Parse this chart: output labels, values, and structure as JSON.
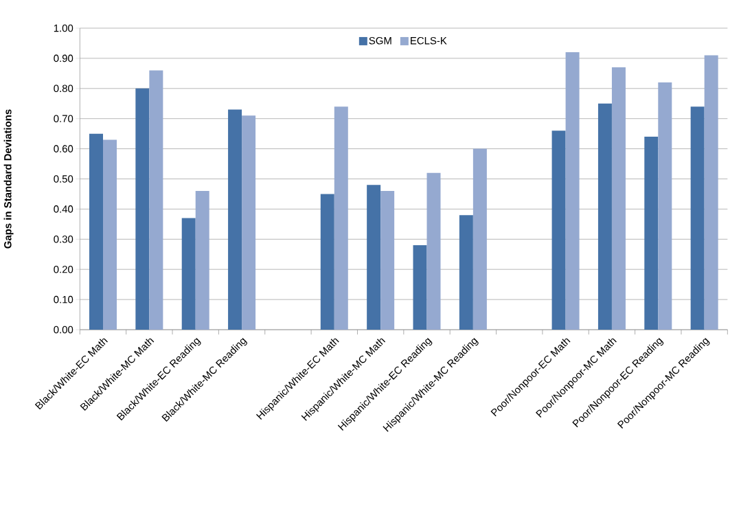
{
  "chart_data": {
    "type": "bar",
    "ylabel": "Gaps in Standard Deviations",
    "categories": [
      "Black/White-EC Math",
      "Black/White-MC Math",
      "Black/White-EC Reading",
      "Black/White-MC Reading",
      null,
      "Hispanic/White-EC Math",
      "Hispanic/White-MC Math",
      "Hispanic/White-EC Reading",
      "Hispanic/White-MC Reading",
      null,
      "Poor/Nonpoor-EC Math",
      "Poor/Nonpoor-MC Math",
      "Poor/Nonpoor-EC Reading",
      "Poor/Nonpoor-MC Reading"
    ],
    "series": [
      {
        "name": "SGM",
        "color": "#4572a7",
        "values": [
          0.65,
          0.8,
          0.37,
          0.73,
          null,
          0.45,
          0.48,
          0.28,
          0.38,
          null,
          0.66,
          0.75,
          0.64,
          0.74
        ]
      },
      {
        "name": "ECLS-K",
        "color": "#95a9d0",
        "values": [
          0.63,
          0.86,
          0.46,
          0.71,
          null,
          0.74,
          0.46,
          0.52,
          0.6,
          null,
          0.92,
          0.87,
          0.82,
          0.91
        ]
      }
    ],
    "ylim": [
      0,
      1
    ],
    "yticks": [
      {
        "value": 0,
        "label": "0.00"
      },
      {
        "value": 0.1,
        "label": "0.10"
      },
      {
        "value": 0.2,
        "label": "0.20"
      },
      {
        "value": 0.3,
        "label": "0.30"
      },
      {
        "value": 0.4,
        "label": "0.40"
      },
      {
        "value": 0.5,
        "label": "0.50"
      },
      {
        "value": 0.6,
        "label": "0.60"
      },
      {
        "value": 0.7,
        "label": "0.70"
      },
      {
        "value": 0.8,
        "label": "0.80"
      },
      {
        "value": 0.9,
        "label": "0.90"
      },
      {
        "value": 1,
        "label": "1.00"
      }
    ],
    "grid": "y",
    "legend": "top"
  }
}
